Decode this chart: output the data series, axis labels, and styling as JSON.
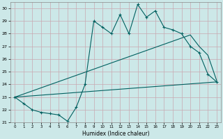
{
  "xlabel": "Humidex (Indice chaleur)",
  "bg_color": "#cce8e8",
  "grid_color": "#c8a8b0",
  "line_color": "#006060",
  "xlim": [
    -0.5,
    23.5
  ],
  "ylim": [
    21,
    30.5
  ],
  "yticks": [
    21,
    22,
    23,
    24,
    25,
    26,
    27,
    28,
    29,
    30
  ],
  "xticks": [
    0,
    1,
    2,
    3,
    4,
    5,
    6,
    7,
    8,
    9,
    10,
    11,
    12,
    13,
    14,
    15,
    16,
    17,
    18,
    19,
    20,
    21,
    22,
    23
  ],
  "line1_x": [
    0,
    1,
    2,
    3,
    4,
    5,
    6,
    7,
    8,
    9,
    10,
    11,
    12,
    13,
    14,
    15,
    16,
    17,
    18,
    19,
    20,
    21,
    22,
    23
  ],
  "line1_y": [
    23.0,
    22.5,
    22.0,
    21.8,
    21.7,
    21.6,
    21.1,
    22.2,
    24.0,
    29.0,
    28.5,
    28.0,
    29.5,
    28.0,
    30.3,
    29.3,
    29.8,
    28.5,
    28.3,
    28.0,
    27.0,
    26.5,
    24.8,
    24.2
  ],
  "line2_x": [
    0,
    20,
    21,
    22,
    23
  ],
  "line2_y": [
    23.0,
    27.9,
    27.0,
    26.3,
    24.3
  ],
  "line3_x": [
    0,
    23
  ],
  "line3_y": [
    23.0,
    24.2
  ]
}
